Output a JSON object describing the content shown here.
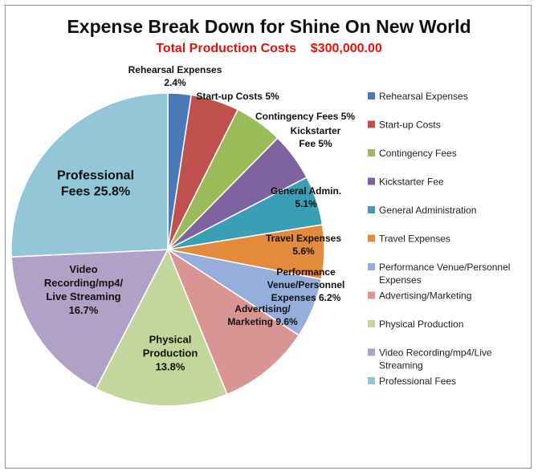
{
  "chart_data": {
    "type": "pie",
    "title": "Expense Break Down for Shine On New World",
    "subtitle": "Total Production Costs    $300,000.00",
    "slices": [
      {
        "legend": "Rehearsal Expenses",
        "label_lines": [
          "Rehearsal Expenses",
          "2.4%"
        ],
        "value": 2.4,
        "color": "#4a7ab5"
      },
      {
        "legend": "Start-up Costs",
        "label_lines": [
          "Start-up Costs 5%"
        ],
        "value": 5,
        "color": "#c0504d"
      },
      {
        "legend": "Contingency Fees",
        "label_lines": [
          "Contingency Fees 5%"
        ],
        "value": 5,
        "color": "#9bbb59"
      },
      {
        "legend": "Kickstarter Fee",
        "label_lines": [
          "Kickstarter",
          "Fee 5%"
        ],
        "value": 5,
        "color": "#7f63a1"
      },
      {
        "legend": "General Administration",
        "label_lines": [
          "General Admin.",
          "5.1%"
        ],
        "value": 5.1,
        "color": "#3a9fb5"
      },
      {
        "legend": "Travel Expenses",
        "label_lines": [
          "Travel Expenses",
          "5.6%"
        ],
        "value": 5.6,
        "color": "#e48a3c"
      },
      {
        "legend": "Performance Venue/Personnel Expenses",
        "legend_lines": [
          "Performance Venue/Personnel",
          "Expenses"
        ],
        "label_lines": [
          "Performance",
          "Venue/Personnel",
          "Expenses 6.2%"
        ],
        "value": 6.2,
        "color": "#95aedb"
      },
      {
        "legend": "Advertising/Marketing",
        "label_lines": [
          "Advertising/",
          "Marketing 9.6%"
        ],
        "value": 9.6,
        "color": "#d99594"
      },
      {
        "legend": "Physical Production",
        "label_lines": [
          "Physical",
          "Production",
          "13.8%"
        ],
        "value": 13.8,
        "color": "#c3d69b"
      },
      {
        "legend": "Video Recording/mp4/Live Streaming",
        "legend_lines": [
          "Video Recording/mp4/Live",
          "Streaming"
        ],
        "label_lines": [
          "Video",
          "Recording/mp4/",
          "Live Streaming",
          "16.7%"
        ],
        "value": 16.7,
        "color": "#b2a1c7"
      },
      {
        "legend": "Professional Fees",
        "label_lines": [
          "Professional",
          "Fees 25.8%"
        ],
        "value": 25.8,
        "color": "#93c6d6"
      }
    ],
    "legend_position": "right"
  }
}
